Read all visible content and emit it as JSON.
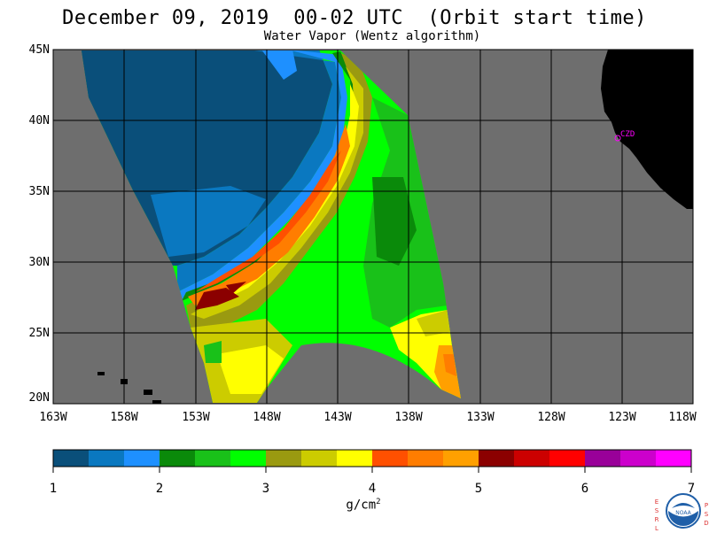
{
  "title": "December 09, 2019  00-02 UTC  (Orbit start time)",
  "subtitle": "Water Vapor (Wentz algorithm)",
  "colors": {
    "land": "#000000",
    "no_data": "#6e6e6e",
    "grid": "#000000",
    "station": "#ff00ff"
  },
  "map": {
    "lat_labels": [
      "45N",
      "40N",
      "35N",
      "30N",
      "25N",
      "20N"
    ],
    "lon_labels": [
      "163W",
      "158W",
      "153W",
      "148W",
      "143W",
      "138W",
      "133W",
      "128W",
      "123W",
      "118W"
    ]
  },
  "station": {
    "label": "CZD"
  },
  "colorbar": {
    "unit_base": "g/cm",
    "unit_exp": "2",
    "tick_labels": [
      "1",
      "2",
      "3",
      "4",
      "5",
      "6",
      "7"
    ],
    "colors": [
      "#0a4f7a",
      "#0a78c0",
      "#1e90ff",
      "#0a8a0a",
      "#19c119",
      "#00ff00",
      "#9a9a10",
      "#cccc00",
      "#ffff00",
      "#ff5000",
      "#ff7d00",
      "#ffa000",
      "#8b0000",
      "#cc0000",
      "#ff0000",
      "#990099",
      "#cc00cc",
      "#ff00ff"
    ]
  },
  "logo": {
    "left_letters": [
      "E",
      "S",
      "R",
      "L"
    ],
    "right_letters": [
      "P",
      "S",
      "D"
    ],
    "emblem": "NOAA"
  }
}
